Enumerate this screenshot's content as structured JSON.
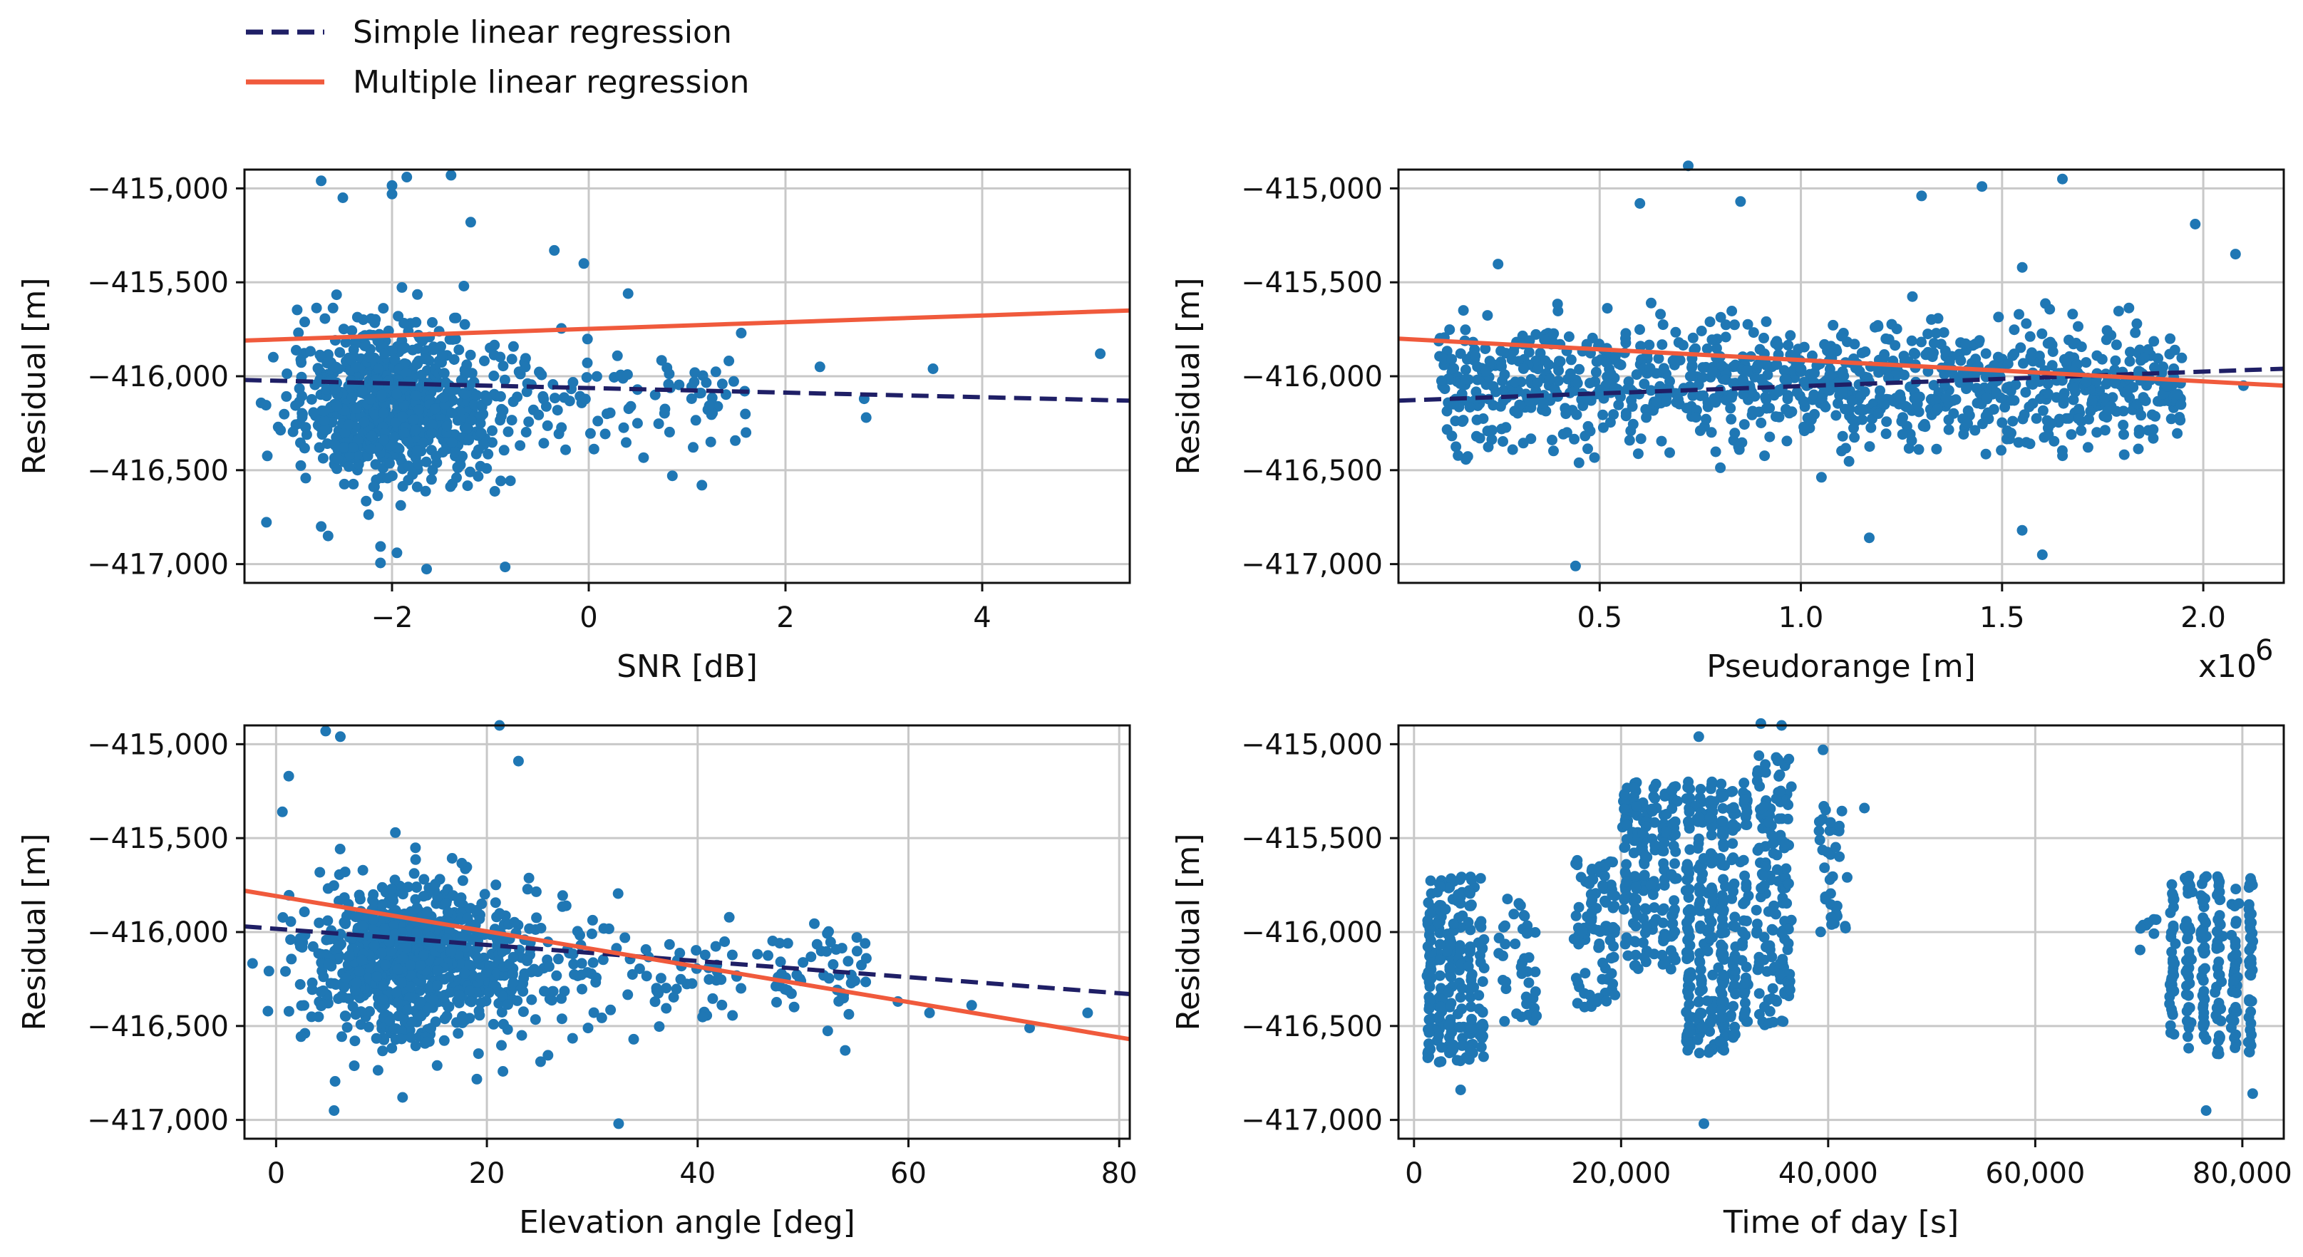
{
  "colors": {
    "points": "#1f77b4",
    "simple_line": "#1f1f66",
    "multiple_line": "#f05a3c",
    "grid": "#c8c8c8",
    "frame": "#111111"
  },
  "legend": {
    "entries": [
      {
        "label": "Simple linear regression",
        "style": "dashed",
        "color": "#1f1f66"
      },
      {
        "label": "Multiple linear regression",
        "style": "solid",
        "color": "#f05a3c"
      }
    ],
    "placement": "top-left"
  },
  "chart_data": [
    {
      "type": "scatter",
      "xlabel": "SNR [dB]",
      "ylabel": "Residual [m]",
      "xlim": [
        -3.5,
        5.5
      ],
      "ylim": [
        -417100,
        -414900
      ],
      "xticks": [
        -2,
        0,
        2,
        4
      ],
      "xtick_labels": [
        "−2",
        "0",
        "2",
        "4"
      ],
      "yticks": [
        -415000,
        -415500,
        -416000,
        -416500,
        -417000
      ],
      "ytick_labels": [
        "−415,000",
        "−415,500",
        "−416,000",
        "−416,500",
        "−417,000"
      ],
      "grid": true,
      "cloud": {
        "main": {
          "x_center": -2.3,
          "x_spread": 0.65,
          "y_center": -416150,
          "y_spread": 380,
          "n": 820
        },
        "tail": {
          "x_min": -1.5,
          "x_max": 1.6,
          "y_center": -416100,
          "y_spread": 260,
          "n": 110
        }
      },
      "points": [
        [
          -2.72,
          -414960
        ],
        [
          -2.5,
          -415050
        ],
        [
          -2.0,
          -415030
        ],
        [
          -2.0,
          -414985
        ],
        [
          -1.85,
          -414940
        ],
        [
          -1.4,
          -414930
        ],
        [
          -1.2,
          -415180
        ],
        [
          -0.35,
          -415330
        ],
        [
          -0.05,
          -415400
        ],
        [
          0.4,
          -415560
        ],
        [
          1.55,
          -415770
        ],
        [
          2.35,
          -415950
        ],
        [
          2.8,
          -416120
        ],
        [
          2.82,
          -416220
        ],
        [
          3.5,
          -415960
        ],
        [
          5.2,
          -415880
        ],
        [
          1.15,
          -416580
        ],
        [
          0.85,
          -416530
        ],
        [
          -0.85,
          -417015
        ],
        [
          -1.95,
          -416940
        ],
        [
          -2.65,
          -416850
        ],
        [
          -2.72,
          -416800
        ]
      ],
      "lines": {
        "simple": {
          "x": [
            -3.5,
            5.5
          ],
          "y": [
            -416020,
            -416130
          ]
        },
        "multiple": {
          "x": [
            -3.5,
            5.5
          ],
          "y": [
            -415810,
            -415650
          ]
        }
      }
    },
    {
      "type": "scatter",
      "xlabel": "Pseudorange [m]",
      "ylabel": "Residual [m]",
      "x_multiplier": "x10",
      "x_multiplier_exp": "6",
      "xlim": [
        0.0,
        2.2
      ],
      "ylim": [
        -417100,
        -414900
      ],
      "xticks": [
        0.5,
        1.0,
        1.5,
        2.0
      ],
      "xtick_labels": [
        "0.5",
        "1.0",
        "1.5",
        "2.0"
      ],
      "yticks": [
        -415000,
        -415500,
        -416000,
        -416500,
        -417000
      ],
      "ytick_labels": [
        "−415,000",
        "−415,500",
        "−416,000",
        "−416,500",
        "−417,000"
      ],
      "grid": true,
      "cloud": {
        "main": {
          "x_min": 0.1,
          "x_max": 1.95,
          "y_center": -416050,
          "y_spread": 300,
          "n": 1050
        }
      },
      "points": [
        [
          0.72,
          -414880
        ],
        [
          0.6,
          -415080
        ],
        [
          0.85,
          -415070
        ],
        [
          1.65,
          -414950
        ],
        [
          1.45,
          -414990
        ],
        [
          1.3,
          -415040
        ],
        [
          1.98,
          -415190
        ],
        [
          2.08,
          -415350
        ],
        [
          2.1,
          -416050
        ],
        [
          0.44,
          -417010
        ],
        [
          1.6,
          -416950
        ],
        [
          1.17,
          -416860
        ],
        [
          1.55,
          -416820
        ]
      ],
      "lines": {
        "simple": {
          "x": [
            0.0,
            2.2
          ],
          "y": [
            -416130,
            -415960
          ]
        },
        "multiple": {
          "x": [
            0.0,
            2.2
          ],
          "y": [
            -415800,
            -416050
          ]
        }
      }
    },
    {
      "type": "scatter",
      "xlabel": "Elevation angle [deg]",
      "ylabel": "Residual [m]",
      "xlim": [
        -3,
        81
      ],
      "ylim": [
        -417100,
        -414900
      ],
      "xticks": [
        0,
        20,
        40,
        60,
        80
      ],
      "xtick_labels": [
        "0",
        "20",
        "40",
        "60",
        "80"
      ],
      "yticks": [
        -415000,
        -415500,
        -416000,
        -416500,
        -417000
      ],
      "ytick_labels": [
        "−415,000",
        "−415,500",
        "−416,000",
        "−416,500",
        "−417,000"
      ],
      "grid": true,
      "cloud": {
        "main": {
          "x_center": 10,
          "x_spread": 7,
          "y_center": -416150,
          "y_spread": 380,
          "n": 850
        },
        "tail": {
          "x_min": 20,
          "x_max": 56,
          "y_center": -416220,
          "y_spread": 220,
          "n": 150
        }
      },
      "points": [
        [
          4.7,
          -414930
        ],
        [
          6.1,
          -414960
        ],
        [
          1.2,
          -415170
        ],
        [
          0.6,
          -415360
        ],
        [
          21.2,
          -414900
        ],
        [
          23.0,
          -415090
        ],
        [
          5.5,
          -416950
        ],
        [
          12.0,
          -416880
        ],
        [
          32.5,
          -417020
        ],
        [
          59.0,
          -416370
        ],
        [
          62.0,
          -416430
        ],
        [
          66.0,
          -416390
        ],
        [
          71.5,
          -416510
        ],
        [
          77.0,
          -416430
        ],
        [
          54.0,
          -416630
        ],
        [
          56.0,
          -416140
        ]
      ],
      "lines": {
        "simple": {
          "x": [
            -3,
            81
          ],
          "y": [
            -415970,
            -416330
          ]
        },
        "multiple": {
          "x": [
            -3,
            81
          ],
          "y": [
            -415780,
            -416570
          ]
        }
      }
    },
    {
      "type": "scatter",
      "xlabel": "Time of day [s]",
      "ylabel": "Residual [m]",
      "xlim": [
        -1500,
        84000
      ],
      "ylim": [
        -417100,
        -414900
      ],
      "xticks": [
        0,
        20000,
        40000,
        60000,
        80000
      ],
      "xtick_labels": [
        "0",
        "20,000",
        "40,000",
        "60,000",
        "80,000"
      ],
      "yticks": [
        -415000,
        -415500,
        -416000,
        -416500,
        -417000
      ],
      "ytick_labels": [
        "−415,000",
        "−415,500",
        "−416,000",
        "−416,500",
        "−417,000"
      ],
      "grid": true,
      "strips": [
        {
          "x_min": 1000,
          "x_max": 7000,
          "y_min": -416700,
          "y_max": -415700,
          "n": 230
        },
        {
          "x_min": 8000,
          "x_max": 12000,
          "y_min": -416500,
          "y_max": -415800,
          "n": 40
        },
        {
          "x_min": 15500,
          "x_max": 19500,
          "y_min": -416400,
          "y_max": -415600,
          "n": 90
        },
        {
          "x_min": 20000,
          "x_max": 25500,
          "y_min": -416200,
          "y_max": -415200,
          "n": 200
        },
        {
          "x_min": 26000,
          "x_max": 32500,
          "y_min": -416650,
          "y_max": -415200,
          "n": 320
        },
        {
          "x_min": 33000,
          "x_max": 36500,
          "y_min": -416500,
          "y_max": -415050,
          "n": 150
        },
        {
          "x_min": 39000,
          "x_max": 42000,
          "y_min": -416000,
          "y_max": -415300,
          "n": 35
        },
        {
          "x_min": 70000,
          "x_max": 72000,
          "y_min": -416100,
          "y_max": -415900,
          "n": 8
        },
        {
          "x_min": 72500,
          "x_max": 81500,
          "y_min": -416650,
          "y_max": -415700,
          "n": 230
        }
      ],
      "points": [
        [
          27500,
          -414960
        ],
        [
          33500,
          -414890
        ],
        [
          35500,
          -414900
        ],
        [
          39500,
          -415030
        ],
        [
          43500,
          -415340
        ],
        [
          28000,
          -417020
        ],
        [
          4500,
          -416840
        ],
        [
          76500,
          -416950
        ],
        [
          81000,
          -416860
        ]
      ],
      "lines": {}
    }
  ]
}
